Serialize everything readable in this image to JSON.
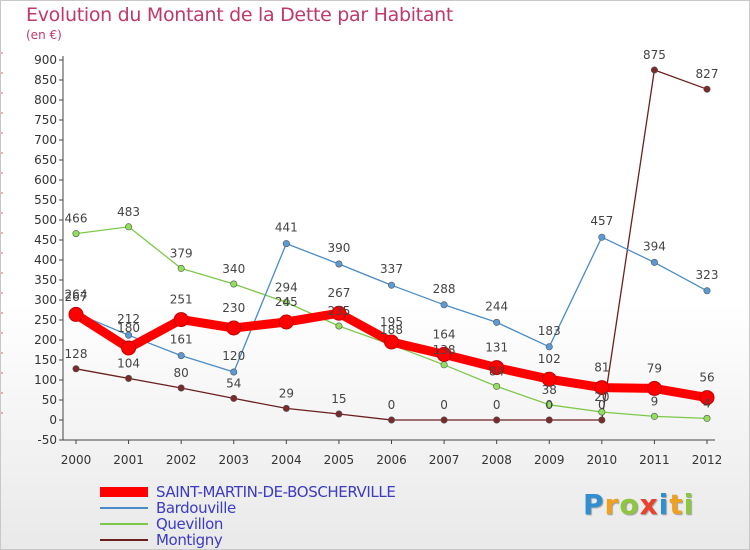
{
  "title": "Evolution du Montant de la Dette par Habitant",
  "subtitle": "(en €)",
  "colors": {
    "title": "#c0386a",
    "legend_text": "#3b3bc4",
    "axis": "#333333"
  },
  "logo": {
    "text": "Proxiti",
    "letters": [
      {
        "ch": "P",
        "color": "#2f8fd0"
      },
      {
        "ch": "r",
        "color": "#f0a020"
      },
      {
        "ch": "o",
        "color": "#8dc63f"
      },
      {
        "ch": "x",
        "color": "#e8412c"
      },
      {
        "ch": "i",
        "color": "#2f8fd0"
      },
      {
        "ch": "t",
        "color": "#f0a020"
      },
      {
        "ch": "i",
        "color": "#8dc63f"
      }
    ]
  },
  "chart_data": {
    "type": "line",
    "title": "Evolution du Montant de la Dette par Habitant",
    "subtitle": "(en €)",
    "x": [
      "2000",
      "2001",
      "2002",
      "2003",
      "2004",
      "2005",
      "2006",
      "2007",
      "2008",
      "2009",
      "2010",
      "2011",
      "2012"
    ],
    "ylim": [
      -50,
      900
    ],
    "yticks": [
      -50,
      0,
      50,
      100,
      150,
      200,
      250,
      300,
      350,
      400,
      450,
      500,
      550,
      600,
      650,
      700,
      750,
      800,
      850,
      900
    ],
    "grid": false,
    "legend_position": "bottom-left",
    "series": [
      {
        "name": "SAINT-MARTIN-DE-BOSCHERVILLE",
        "color": "#ff0000",
        "stroke": "#e8140c",
        "values": [
          264,
          180,
          251,
          230,
          245,
          267,
          195,
          164,
          131,
          102,
          81,
          79,
          56
        ]
      },
      {
        "name": "Bardouville",
        "color": "#5b9bd5",
        "stroke": "#4a8cc8",
        "values": [
          267,
          212,
          161,
          120,
          441,
          390,
          337,
          288,
          244,
          183,
          457,
          394,
          323
        ]
      },
      {
        "name": "Quevillon",
        "color": "#90e05a",
        "stroke": "#7cc94a",
        "values": [
          466,
          483,
          379,
          340,
          294,
          235,
          188,
          138,
          84,
          38,
          20,
          9,
          4
        ]
      },
      {
        "name": "Montigny",
        "color": "#7a2a2a",
        "stroke": "#6b2020",
        "values": [
          128,
          104,
          80,
          54,
          29,
          15,
          0,
          0,
          0,
          0,
          0,
          875,
          827
        ]
      }
    ]
  }
}
